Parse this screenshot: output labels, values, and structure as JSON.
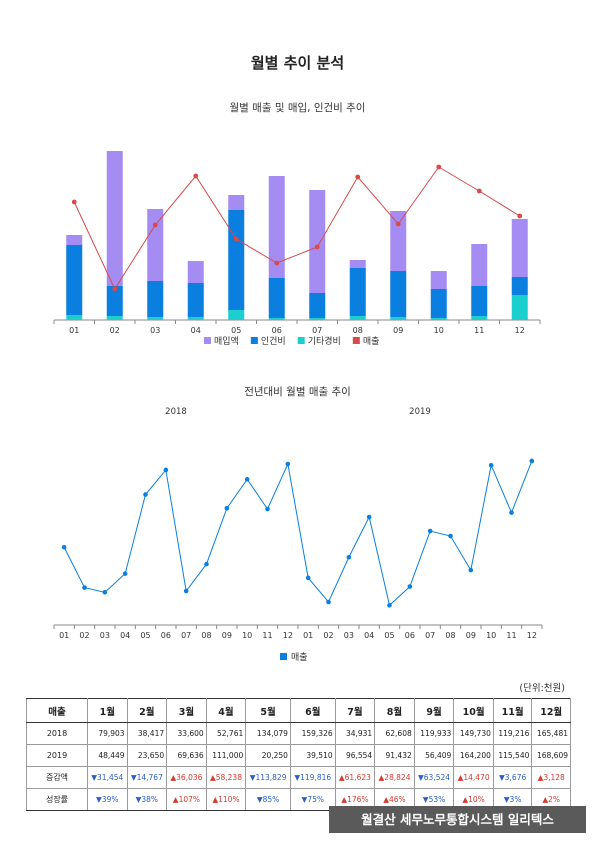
{
  "page_title": "월별 추이 분석",
  "chart_data": [
    {
      "type": "bar",
      "stacked": true,
      "title": "월별 매출 및 매입, 인건비 추이",
      "categories": [
        "01",
        "02",
        "03",
        "04",
        "05",
        "06",
        "07",
        "08",
        "09",
        "10",
        "11",
        "12"
      ],
      "series": [
        {
          "name": "기타경비",
          "color": "#1ccfcf",
          "values": [
            5,
            4,
            3,
            3,
            10,
            2,
            2,
            4,
            3,
            2,
            4,
            25
          ]
        },
        {
          "name": "인건비",
          "color": "#0a7fe0",
          "values": [
            70,
            30,
            36,
            34,
            100,
            40,
            25,
            48,
            46,
            29,
            30,
            18
          ]
        },
        {
          "name": "매입액",
          "color": "#a58cf2",
          "values": [
            10,
            135,
            72,
            22,
            15,
            102,
            103,
            8,
            60,
            18,
            42,
            58
          ]
        },
        {
          "name": "매출",
          "type": "line",
          "color": "#d94a4a",
          "values": [
            118,
            31,
            95,
            144,
            81,
            57,
            73,
            143,
            96,
            153,
            129,
            104
          ]
        }
      ],
      "ylim": [
        0,
        175
      ],
      "legend": "bottom",
      "grid": false
    },
    {
      "type": "line",
      "title": "전년대비 월별 매출 추이",
      "group_labels": [
        "2018",
        "2019"
      ],
      "categories": [
        "01",
        "02",
        "03",
        "04",
        "05",
        "06",
        "07",
        "08",
        "09",
        "10",
        "11",
        "12",
        "01",
        "02",
        "03",
        "04",
        "05",
        "06",
        "07",
        "08",
        "09",
        "10",
        "11",
        "12"
      ],
      "series": [
        {
          "name": "매출",
          "color": "#0a7fe0",
          "values": [
            79903,
            38417,
            33600,
            52761,
            134079,
            159326,
            34931,
            62608,
            119933,
            149730,
            119216,
            165481,
            48449,
            23650,
            69636,
            111000,
            20250,
            39510,
            96554,
            91432,
            56409,
            164200,
            115540,
            168609
          ]
        }
      ],
      "ylim": [
        0,
        185000
      ],
      "legend": "bottom",
      "grid": false
    }
  ],
  "table": {
    "unit": "(단위:천원)",
    "corner": "매출",
    "months": [
      "1월",
      "2월",
      "3월",
      "4월",
      "5월",
      "6월",
      "7월",
      "8월",
      "9월",
      "10월",
      "11월",
      "12월"
    ],
    "rows": [
      {
        "label": "2018",
        "values": [
          "79,903",
          "38,417",
          "33,600",
          "52,761",
          "134,079",
          "159,326",
          "34,931",
          "62,608",
          "119,933",
          "149,730",
          "119,216",
          "165,481"
        ]
      },
      {
        "label": "2019",
        "values": [
          "48,449",
          "23,650",
          "69,636",
          "111,000",
          "20,250",
          "39,510",
          "96,554",
          "91,432",
          "56,409",
          "164,200",
          "115,540",
          "168,609"
        ]
      },
      {
        "label": "증감액",
        "values": [
          "▼31,454",
          "▼14,767",
          "▲36,036",
          "▲58,238",
          "▼113,829",
          "▼119,816",
          "▲61,623",
          "▲28,824",
          "▼63,524",
          "▲14,470",
          "▼3,676",
          "▲3,128"
        ]
      },
      {
        "label": "성장률",
        "values": [
          "▼39%",
          "▼38%",
          "▲107%",
          "▲110%",
          "▼85%",
          "▼75%",
          "▲176%",
          "▲46%",
          "▼53%",
          "▲10%",
          "▼3%",
          "▲2%"
        ]
      }
    ]
  },
  "footer": "월결산 세무노무통합시스템 일리텍스",
  "colors": {
    "up": "#d63a2e",
    "down": "#2a5fc6",
    "footer_bg": "#5a5a5a"
  }
}
